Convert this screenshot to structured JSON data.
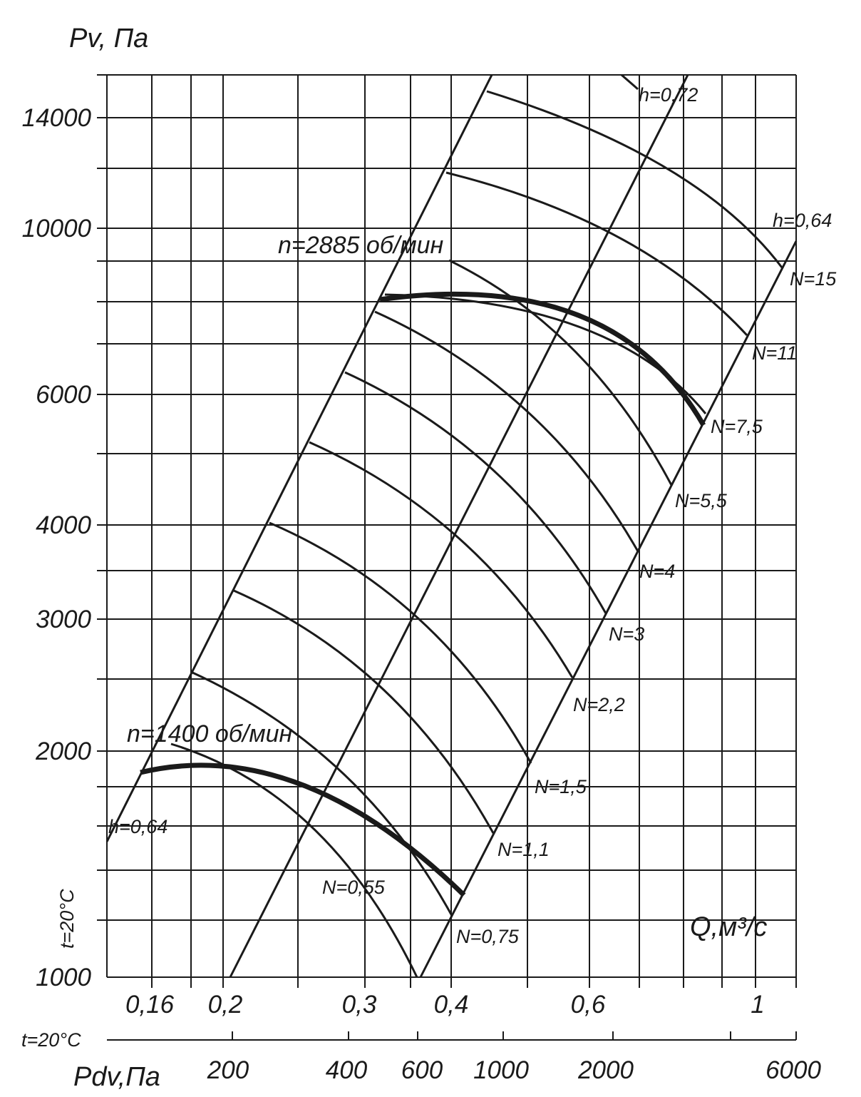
{
  "chart_data": {
    "type": "line",
    "title": "",
    "y_axis": {
      "title": "Pv, Па",
      "scale": "log",
      "range": [
        1000,
        15000
      ],
      "tick_labels": [
        "14000",
        "10000",
        "6000",
        "4000",
        "3000",
        "2000",
        "1000"
      ],
      "tick_values": [
        14000,
        10000,
        6000,
        4000,
        3000,
        2000,
        1000
      ]
    },
    "x_axis": {
      "title": "Q,м³/с",
      "scale": "log",
      "range": [
        0.146,
        1.1
      ],
      "tick_labels": [
        "0,16",
        "0,2",
        "0,3",
        "0,4",
        "0,6",
        "1"
      ],
      "tick_values": [
        0.16,
        0.2,
        0.3,
        0.4,
        0.6,
        1.0
      ]
    },
    "dynamic_pressure_axis": {
      "title": "Pdv,Па",
      "temperature_label": "t=20°C",
      "tick_labels": [
        "200",
        "400",
        "600",
        "1000",
        "2000",
        "6000"
      ],
      "tick_values": [
        200,
        400,
        600,
        1000,
        2000,
        6000
      ]
    },
    "temperature_label": "t=20°C",
    "speed_curves": [
      {
        "name": "n=1400 об/мин",
        "points": [
          [
            0.155,
            1820
          ],
          [
            0.19,
            1890
          ],
          [
            0.24,
            1800
          ],
          [
            0.3,
            1640
          ],
          [
            0.36,
            1440
          ],
          [
            0.41,
            1240
          ]
        ]
      },
      {
        "name": "n=2885 об/мин",
        "points": [
          [
            0.325,
            7900
          ],
          [
            0.4,
            8100
          ],
          [
            0.5,
            7800
          ],
          [
            0.6,
            7100
          ],
          [
            0.72,
            6100
          ],
          [
            0.81,
            5200
          ]
        ]
      }
    ],
    "efficiency_lines": [
      {
        "name": "h=0,64",
        "points": [
          [
            0.146,
            1630
          ],
          [
            0.24,
            4000
          ],
          [
            0.33,
            8000
          ],
          [
            0.42,
            16000
          ]
        ]
      },
      {
        "name": "h=0,72",
        "points": [
          [
            0.2,
            1000
          ],
          [
            0.54,
            7000
          ],
          [
            0.87,
            16000
          ]
        ]
      },
      {
        "name": "h=0,64",
        "points": [
          [
            0.37,
            1000
          ],
          [
            0.71,
            3500
          ],
          [
            1.1,
            9200
          ]
        ]
      }
    ],
    "power_curves": [
      {
        "name": "N=0,55",
        "points": [
          [
            0.18,
            2050
          ],
          [
            0.27,
            1650
          ],
          [
            0.36,
            1040
          ]
        ]
      },
      {
        "name": "N=0,75",
        "points": [
          [
            0.18,
            2500
          ],
          [
            0.3,
            2050
          ],
          [
            0.4,
            1240
          ]
        ]
      },
      {
        "name": "N=1,1",
        "points": [
          [
            0.22,
            3250
          ],
          [
            0.35,
            2750
          ],
          [
            0.45,
            1640
          ]
        ]
      },
      {
        "name": "N=1,5",
        "points": [
          [
            0.24,
            4000
          ],
          [
            0.36,
            3400
          ],
          [
            0.5,
            2050
          ]
        ]
      },
      {
        "name": "N=2,2",
        "points": [
          [
            0.27,
            4950
          ],
          [
            0.4,
            4200
          ],
          [
            0.57,
            2500
          ]
        ]
      },
      {
        "name": "N=3",
        "points": [
          [
            0.3,
            6400
          ],
          [
            0.44,
            5400
          ],
          [
            0.61,
            3250
          ]
        ]
      },
      {
        "name": "N=4",
        "points": [
          [
            0.32,
            7600
          ],
          [
            0.5,
            6500
          ],
          [
            0.66,
            3900
          ]
        ]
      },
      {
        "name": "N=5,5",
        "points": [
          [
            0.36,
            10200
          ],
          [
            0.54,
            8600
          ],
          [
            0.71,
            4950
          ]
        ]
      },
      {
        "name": "N=7,5",
        "points": [
          [
            0.38,
            11500
          ],
          [
            0.58,
            9500
          ],
          [
            0.8,
            5300
          ]
        ]
      },
      {
        "name": "N=11",
        "points": [
          [
            0.42,
            13500
          ],
          [
            0.65,
            11000
          ],
          [
            0.96,
            7300
          ]
        ]
      },
      {
        "name": "N=15",
        "points": [
          [
            0.62,
            15000
          ],
          [
            0.85,
            12200
          ],
          [
            1.05,
            9000
          ]
        ]
      }
    ],
    "grid": true,
    "legend": "none"
  }
}
